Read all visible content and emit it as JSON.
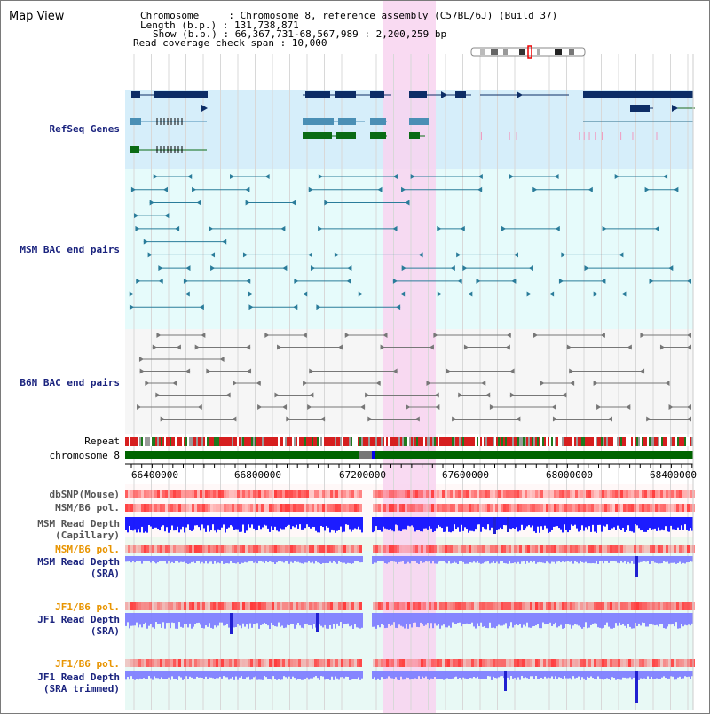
{
  "title": "Map View",
  "info": {
    "line1": "Chromosome     : Chromosome 8, reference assembly (C57BL/6J) (Build 37)",
    "line2": "Length (b.p.) : 131,738,871",
    "line3": "Show (b.p.) : 66,367,731-68,567,989 : 2,200,259 bp",
    "line4": "Read coverage check span : 10,000"
  },
  "tracks": {
    "refseq": "RefSeq Genes",
    "msm_bac": "MSM BAC end pairs",
    "b6n_bac": "B6N BAC end pairs",
    "repeat": "Repeat",
    "chromosome": "chromosome 8",
    "dbsnp": "dbSNP(Mouse)",
    "msm_b6_pol_1": "MSM/B6 pol.",
    "msm_depth_cap_1": "MSM Read Depth",
    "msm_depth_cap_2": "(Capillary)",
    "msm_b6_pol_2": "MSM/B6 pol.",
    "msm_depth_sra_1": "MSM Read Depth",
    "msm_depth_sra_2": "(SRA)",
    "jf1_b6_pol_1": "JF1/B6 pol.",
    "jf1_depth_sra_1": "JF1 Read Depth",
    "jf1_depth_sra_2": "(SRA)",
    "jf1_b6_pol_2": "JF1/B6 pol.",
    "jf1_depth_trim_1": "JF1 Read Depth",
    "jf1_depth_trim_2": "(SRA trimmed)"
  },
  "ruler": {
    "ticks": [
      "66400000",
      "66800000",
      "67200000",
      "67600000",
      "68000000",
      "68400000"
    ]
  },
  "colors": {
    "refseq_bg": "#d6eefa",
    "bac_bg": "#e6fbfb",
    "highlight": "#f8d4f0",
    "gene_dark": "#0d2d66",
    "gene_mid": "#4a8fb5",
    "gene_green": "#0a6b14",
    "chromosome_bar": "#006400",
    "depth_blue": "#1010ff",
    "depth_light": "#8080ff",
    "pol_red": "#ff3b3b"
  }
}
